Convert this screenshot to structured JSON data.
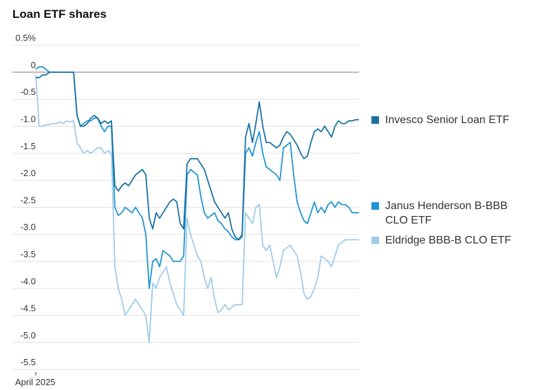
{
  "chart_data": {
    "type": "line",
    "title": "Loan ETF shares",
    "categories": [
      "April 2025",
      null,
      null,
      null,
      null,
      null,
      null,
      null,
      null,
      null,
      null,
      null,
      null,
      null,
      null,
      null,
      null,
      null,
      null,
      null,
      null,
      null,
      null,
      null,
      null,
      null,
      null,
      null,
      null,
      null,
      null,
      null,
      null,
      null,
      null,
      null,
      null,
      null,
      null,
      null,
      null,
      null,
      null,
      null,
      null,
      null,
      null,
      null,
      null,
      null,
      null,
      null,
      null,
      null,
      null,
      null,
      null,
      null,
      null,
      null,
      null,
      null,
      null,
      null,
      null,
      null,
      null,
      null,
      null,
      null,
      null,
      null,
      null,
      null,
      null,
      null,
      null,
      null,
      null,
      null,
      null,
      null,
      null,
      null,
      null,
      null,
      null,
      null,
      null,
      null,
      null,
      null,
      null,
      null,
      null
    ],
    "ylim": [
      -5.6,
      0.6
    ],
    "yticks": [
      {
        "value": 0.5,
        "label": "0.5%"
      },
      0,
      -0.5,
      {
        "value": -1,
        "label": "-1.0"
      },
      -1.5,
      {
        "value": -2,
        "label": "-2.0"
      },
      -2.5,
      {
        "value": -3,
        "label": "-3.0"
      },
      -3.5,
      {
        "value": -4,
        "label": "-4.0"
      },
      -4.5,
      {
        "value": -5,
        "label": "-5.0"
      },
      -5.5
    ],
    "grid": true,
    "series": [
      {
        "name": "Invesco Senior Loan ETF",
        "color": "#1a70a3",
        "values": [
          -0.1,
          -0.1,
          -0.05,
          -0.05,
          0,
          0,
          0,
          0,
          0,
          0,
          0,
          0,
          -0.8,
          -1.0,
          -1.0,
          -0.95,
          -0.85,
          -0.8,
          -0.85,
          -0.95,
          -0.9,
          -0.95,
          -0.9,
          -2.1,
          -2.2,
          -2.1,
          -2.05,
          -2.1,
          -2.0,
          -1.9,
          -1.85,
          -1.8,
          -1.9,
          -2.7,
          -2.9,
          -2.6,
          -2.7,
          -2.6,
          -2.5,
          -2.4,
          -2.35,
          -2.4,
          -2.8,
          -2.9,
          -1.7,
          -1.6,
          -1.6,
          -1.6,
          -1.7,
          -1.8,
          -2.0,
          -2.2,
          -2.4,
          -2.5,
          -2.6,
          -2.7,
          -2.6,
          -2.9,
          -3.05,
          -3.1,
          -3.0,
          -1.2,
          -0.95,
          -1.3,
          -0.95,
          -0.55,
          -1.0,
          -1.3,
          -1.3,
          -1.35,
          -1.4,
          -1.35,
          -1.2,
          -1.1,
          -1.15,
          -1.25,
          -1.35,
          -1.5,
          -1.6,
          -1.55,
          -1.3,
          -1.1,
          -1.05,
          -1.1,
          -1.0,
          -1.1,
          -1.2,
          -1.0,
          -0.9,
          -0.95,
          -0.95,
          -0.9,
          -0.9,
          -0.88,
          -0.88
        ]
      },
      {
        "name": "Janus Henderson B-BBB CLO ETF",
        "color": "#1f94d2",
        "values": [
          0.05,
          0.1,
          0.1,
          0.05,
          0,
          0,
          0,
          0,
          0,
          0,
          0,
          0,
          -0.8,
          -1.0,
          -0.95,
          -0.9,
          -0.9,
          -0.85,
          -0.85,
          -1.0,
          -1.1,
          -1.0,
          -1.0,
          -2.5,
          -2.65,
          -2.6,
          -2.5,
          -2.55,
          -2.6,
          -2.5,
          -2.6,
          -2.7,
          -3.0,
          -4.0,
          -3.5,
          -3.45,
          -3.6,
          -3.3,
          -3.35,
          -3.4,
          -3.5,
          -3.5,
          -3.5,
          -3.4,
          -1.9,
          -1.8,
          -1.85,
          -1.9,
          -2.3,
          -2.6,
          -2.7,
          -2.65,
          -2.6,
          -2.75,
          -2.8,
          -2.9,
          -2.95,
          -3.05,
          -3.1,
          -3.1,
          -3.05,
          -1.5,
          -1.4,
          -1.55,
          -1.3,
          -1.1,
          -1.5,
          -1.75,
          -1.8,
          -1.85,
          -1.9,
          -2.0,
          -1.4,
          -1.35,
          -1.3,
          -1.9,
          -2.4,
          -2.6,
          -2.75,
          -2.8,
          -2.6,
          -2.4,
          -2.6,
          -2.5,
          -2.6,
          -2.45,
          -2.4,
          -2.5,
          -2.4,
          -2.45,
          -2.45,
          -2.5,
          -2.6,
          -2.6,
          -2.6
        ]
      },
      {
        "name": "Eldridge BBB-B CLO ETF",
        "color": "#9fcbea",
        "values": [
          -0.05,
          -1.0,
          -1.0,
          -0.97,
          -0.97,
          -0.95,
          -0.95,
          -0.92,
          -0.95,
          -0.9,
          -0.92,
          -0.9,
          -1.3,
          -1.4,
          -1.5,
          -1.45,
          -1.5,
          -1.45,
          -1.4,
          -1.4,
          -1.5,
          -1.45,
          -1.5,
          -3.6,
          -4.0,
          -4.2,
          -4.5,
          -4.4,
          -4.3,
          -4.2,
          -4.3,
          -4.4,
          -4.5,
          -5.0,
          -3.9,
          -4.0,
          -3.8,
          -3.7,
          -3.6,
          -3.9,
          -4.1,
          -4.3,
          -4.4,
          -4.5,
          -2.7,
          -3.0,
          -3.2,
          -3.4,
          -3.5,
          -3.8,
          -4.0,
          -3.8,
          -4.2,
          -4.45,
          -4.4,
          -4.3,
          -4.4,
          -4.35,
          -4.3,
          -4.3,
          -4.3,
          -2.6,
          -2.7,
          -2.8,
          -2.5,
          -2.45,
          -3.2,
          -3.3,
          -3.2,
          -3.5,
          -3.8,
          -3.6,
          -3.3,
          -3.25,
          -3.2,
          -3.3,
          -3.4,
          -3.7,
          -4.1,
          -4.2,
          -4.15,
          -4.0,
          -3.8,
          -3.4,
          -3.45,
          -3.5,
          -3.6,
          -3.4,
          -3.2,
          -3.15,
          -3.1,
          -3.1,
          -3.1,
          -3.1,
          -3.1
        ]
      }
    ]
  }
}
